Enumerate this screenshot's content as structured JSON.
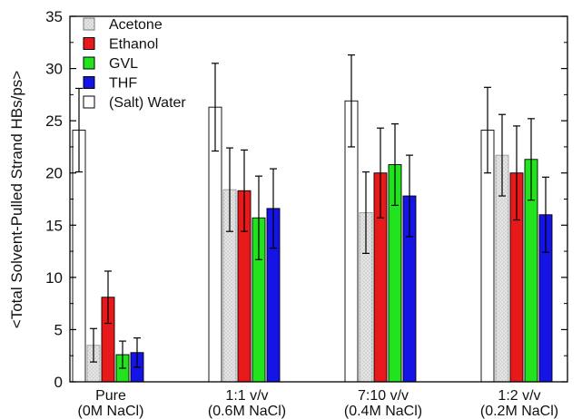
{
  "chart_data": {
    "type": "bar",
    "ylabel": "<Total Solvent-Pulled Strand HBs/ps>",
    "xlabel": "",
    "title": "",
    "ylim": [
      0,
      35
    ],
    "yticks": [
      0,
      5,
      10,
      15,
      20,
      25,
      30,
      35
    ],
    "categories": [
      {
        "line1": "Pure",
        "line2": "(0M NaCl)"
      },
      {
        "line1": "1:1 v/v",
        "line2": "(0.6M NaCl)"
      },
      {
        "line1": "7:10 v/v",
        "line2": "(0.4M NaCl)"
      },
      {
        "line1": "1:2 v/v",
        "line2": "(0.2M NaCl)"
      }
    ],
    "legend_position": "top-left",
    "series": [
      {
        "name": "(Salt) Water",
        "color": "#ffffff",
        "pattern": "none",
        "values": [
          24.1,
          26.3,
          26.9,
          24.1
        ],
        "errors": [
          4.0,
          4.2,
          4.4,
          4.1
        ]
      },
      {
        "name": "Acetone",
        "color": "#d9d9d9",
        "pattern": "dots",
        "values": [
          3.5,
          18.4,
          16.2,
          21.7
        ],
        "errors": [
          1.6,
          4.0,
          3.9,
          3.9
        ]
      },
      {
        "name": "Ethanol",
        "color": "#e8191b",
        "pattern": "none",
        "values": [
          8.1,
          18.3,
          20.0,
          20.0
        ],
        "errors": [
          2.5,
          3.9,
          4.3,
          4.5
        ]
      },
      {
        "name": "GVL",
        "color": "#22e41e",
        "pattern": "none",
        "values": [
          2.6,
          15.7,
          20.8,
          21.3
        ],
        "errors": [
          1.3,
          4.0,
          3.9,
          3.9
        ]
      },
      {
        "name": "THF",
        "color": "#1414e6",
        "pattern": "none",
        "values": [
          2.8,
          16.6,
          17.8,
          16.0
        ],
        "errors": [
          1.4,
          3.8,
          3.9,
          3.6
        ]
      }
    ],
    "legend_order": [
      1,
      2,
      3,
      4,
      0
    ]
  }
}
